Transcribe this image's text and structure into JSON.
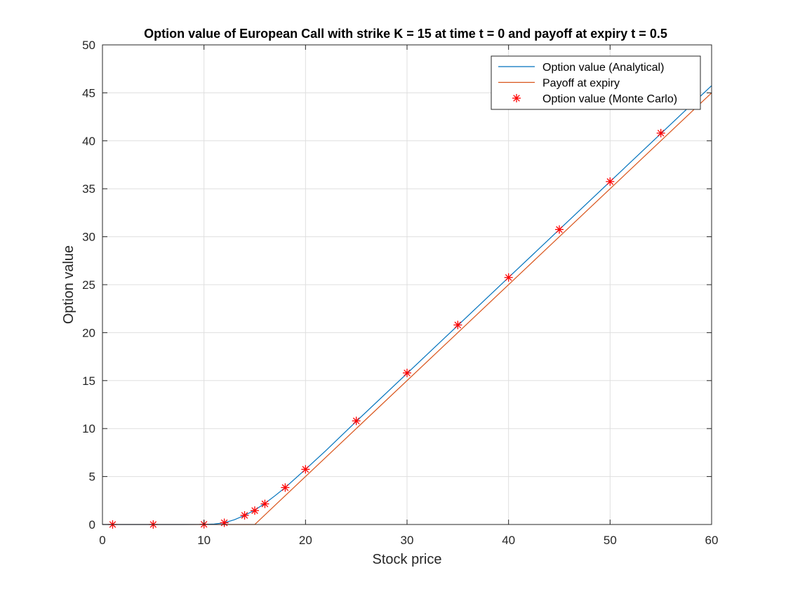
{
  "chart_data": {
    "type": "line",
    "title": "Option value of European Call with strike K = 15 at time t = 0 and payoff at expiry t = 0.5",
    "xlabel": "Stock price",
    "ylabel": "Option value",
    "xlim": [
      0,
      60
    ],
    "ylim": [
      0,
      50
    ],
    "xticks": [
      0,
      10,
      20,
      30,
      40,
      50,
      60
    ],
    "yticks": [
      0,
      5,
      10,
      15,
      20,
      25,
      30,
      35,
      40,
      45,
      50
    ],
    "xtick_labels": [
      "0",
      "10",
      "20",
      "30",
      "40",
      "50",
      "60"
    ],
    "ytick_labels": [
      "0",
      "5",
      "10",
      "15",
      "20",
      "25",
      "30",
      "35",
      "40",
      "45",
      "50"
    ],
    "grid": true,
    "legend_position": "top-right",
    "series": [
      {
        "name": "Option value (Analytical)",
        "kind": "line",
        "color": "#0072BD",
        "x": [
          0,
          5,
          8,
          10,
          11,
          12,
          13,
          14,
          15,
          16,
          17,
          18,
          19,
          20,
          22,
          25,
          30,
          35,
          40,
          45,
          50,
          55,
          60
        ],
        "y": [
          0,
          0,
          0,
          0.01,
          0.05,
          0.18,
          0.5,
          0.95,
          1.5,
          2.2,
          3.0,
          3.85,
          4.8,
          5.75,
          7.7,
          10.75,
          15.75,
          20.75,
          25.75,
          30.75,
          35.75,
          40.75,
          45.75
        ]
      },
      {
        "name": "Payoff at expiry",
        "kind": "line",
        "color": "#D95319",
        "x": [
          0,
          15,
          60
        ],
        "y": [
          0,
          0,
          45
        ]
      },
      {
        "name": "Option value (Monte Carlo)",
        "kind": "scatter",
        "marker": "asterisk",
        "color": "#FF0000",
        "x": [
          1,
          5,
          10,
          12,
          14,
          15,
          16,
          18,
          20,
          25,
          30,
          35,
          40,
          45,
          50,
          55
        ],
        "y": [
          0,
          0,
          0.02,
          0.18,
          0.95,
          1.45,
          2.15,
          3.85,
          5.75,
          10.8,
          15.8,
          20.8,
          25.75,
          30.75,
          35.75,
          40.8
        ]
      }
    ]
  }
}
